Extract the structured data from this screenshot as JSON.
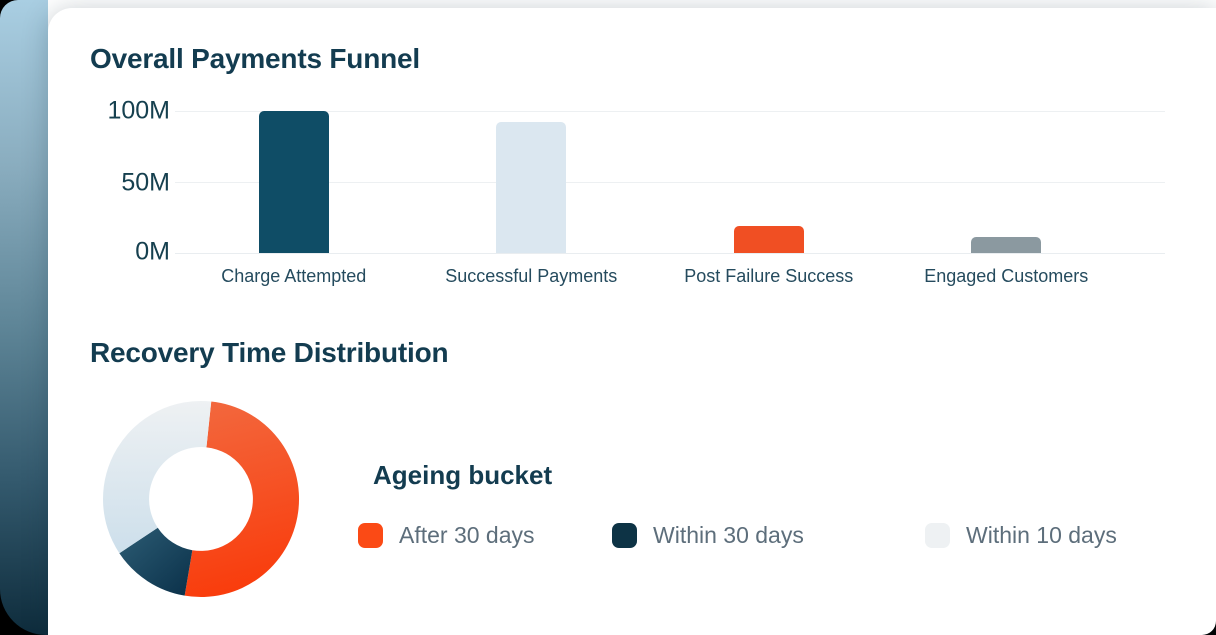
{
  "accent_colors": {
    "dark_teal": "#0f4d66",
    "light_blue": "#dbe7f0",
    "orange": "#f04f23",
    "gray": "#8b99a0",
    "heading_text": "#133c50",
    "axis_text": "#16404f",
    "legend_text": "#5d6e7b",
    "gridline": "#edf0f2",
    "left_strip_gradient": [
      "#a9cee2",
      "#8aadbf",
      "#5d8496",
      "#33596d",
      "#0e2c3c"
    ]
  },
  "chart_data": [
    {
      "type": "bar",
      "title": "Overall Payments Funnel",
      "categories": [
        "Charge Attempted",
        "Successful Payments",
        "Post Failure Success",
        "Engaged Customers"
      ],
      "values": [
        100,
        92,
        19,
        11
      ],
      "value_unit": "M",
      "xlabel": "",
      "ylabel": "",
      "ylim": [
        0,
        100
      ],
      "yticks": [
        "100M",
        "50M",
        "0M"
      ],
      "grid": true,
      "legend": false,
      "bar_colors": [
        "#0f4d66",
        "#dbe7f0",
        "#f04f23",
        "#8b99a0"
      ]
    },
    {
      "type": "pie",
      "title": "Recovery Time Distribution",
      "donut": true,
      "inner_radius_ratio": 0.53,
      "start_angle_deg": 6,
      "legend_title": "Ageing bucket",
      "legend_position": "right",
      "labels": [
        "After 30 days",
        "Within 30 days",
        "Within 10 days"
      ],
      "values": [
        51,
        13,
        36
      ],
      "value_unit": "%",
      "segment_gradients": [
        [
          "#f2693f",
          "#f93d0d"
        ],
        [
          "#2c5c74",
          "#0a3049"
        ],
        [
          "#eef1f3",
          "#cddfeb"
        ]
      ],
      "legend_swatch_colors": [
        "#fb4a15",
        "#0d3345",
        "#eef1f3"
      ]
    }
  ]
}
